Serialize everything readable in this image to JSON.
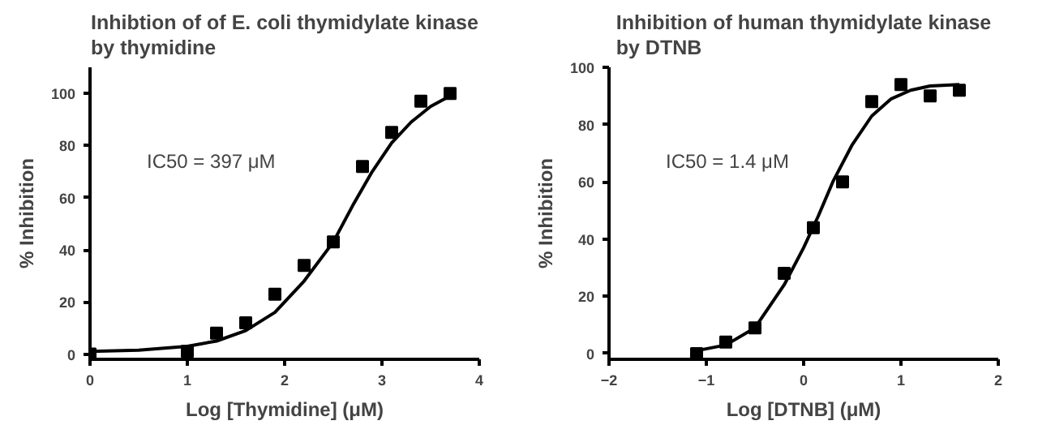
{
  "chart_data": [
    {
      "type": "scatter",
      "title": "Inhibtion of of E. coli thymidylate kinase\nby thymidine",
      "xlabel": "Log [Thymidine] (μM)",
      "ylabel": "% Inhibition",
      "annotations": [
        "IC50 = 397 μM"
      ],
      "xlim": [
        0,
        4
      ],
      "xticks": [
        0,
        1,
        2,
        3,
        4
      ],
      "ylim": [
        -2,
        110
      ],
      "yticks": [
        0,
        20,
        40,
        60,
        80,
        100
      ],
      "grid": false,
      "series": [
        {
          "color": "#000000",
          "marker": "square",
          "x": [
            0,
            1,
            1.3,
            1.6,
            1.9,
            2.2,
            2.5,
            2.8,
            3.1,
            3.4,
            3.7
          ],
          "values": [
            0,
            1,
            8,
            12,
            23,
            34,
            43,
            72,
            85,
            97,
            100
          ]
        },
        {
          "type": "line",
          "color": "#000000",
          "marker": "none",
          "line_style": "solid",
          "x": [
            0,
            0.5,
            1,
            1.3,
            1.6,
            1.9,
            2.2,
            2.5,
            2.7,
            2.9,
            3.1,
            3.3,
            3.5,
            3.7
          ],
          "values": [
            1,
            1.5,
            3,
            5,
            9,
            16,
            28,
            43,
            57,
            70,
            81,
            89,
            95,
            99
          ]
        }
      ]
    },
    {
      "type": "scatter",
      "title": "Inhibition of human thymidylate kinase\nby DTNB",
      "xlabel": "Log [DTNB] (μM)",
      "ylabel": "% Inhibition",
      "annotations": [
        "IC50 = 1.4 μM"
      ],
      "xlim": [
        -2,
        2
      ],
      "xticks": [
        -2,
        -1,
        0,
        1,
        2
      ],
      "ylim": [
        -2,
        100
      ],
      "yticks": [
        0,
        20,
        40,
        60,
        80,
        100
      ],
      "grid": false,
      "series": [
        {
          "color": "#000000",
          "marker": "square",
          "x": [
            -1.1,
            -0.8,
            -0.5,
            -0.2,
            0.1,
            0.4,
            0.7,
            1.0,
            1.3,
            1.6
          ],
          "values": [
            0,
            4,
            9,
            28,
            44,
            60,
            88,
            94,
            90,
            92
          ]
        },
        {
          "type": "line",
          "color": "#000000",
          "marker": "none",
          "line_style": "solid",
          "x": [
            -1.1,
            -0.8,
            -0.5,
            -0.2,
            0,
            0.15,
            0.3,
            0.5,
            0.7,
            0.9,
            1.1,
            1.3,
            1.6
          ],
          "values": [
            1,
            3,
            9,
            24,
            37,
            48,
            60,
            73,
            83,
            89,
            92,
            93.5,
            94
          ]
        }
      ]
    }
  ]
}
